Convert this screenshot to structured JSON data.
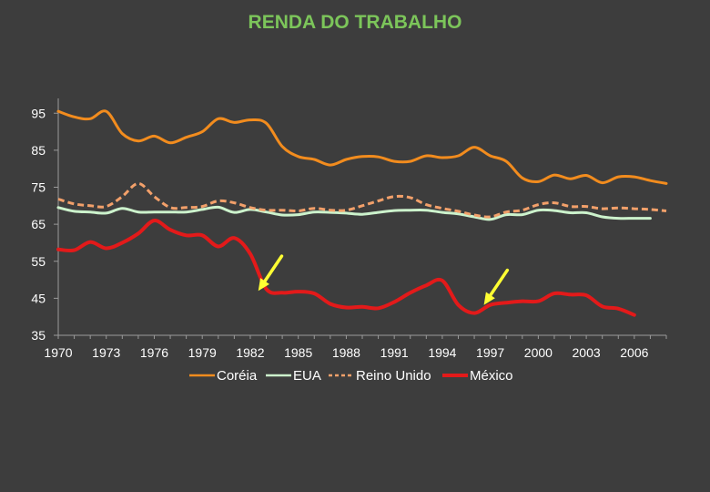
{
  "chart_data": {
    "type": "line",
    "title": "RENDA DO TRABALHO",
    "xlabel": "",
    "ylabel": "",
    "xlim": [
      1970,
      2008
    ],
    "ylim": [
      35,
      99
    ],
    "x_ticks": [
      "1970",
      "1973",
      "1976",
      "1979",
      "1982",
      "1985",
      "1988",
      "1991",
      "1994",
      "1997",
      "2000",
      "2003",
      "2006"
    ],
    "y_ticks": [
      "95",
      "85",
      "75",
      "65",
      "55",
      "45",
      "35"
    ],
    "grid": false,
    "legend_position": "bottom",
    "series": [
      {
        "name": "Coréia",
        "color": "#f28c1e",
        "style": "solid",
        "x": [
          1970,
          1971,
          1972,
          1973,
          1974,
          1975,
          1976,
          1977,
          1978,
          1979,
          1980,
          1981,
          1982,
          1983,
          1984,
          1985,
          1986,
          1987,
          1988,
          1989,
          1990,
          1991,
          1992,
          1993,
          1994,
          1995,
          1996,
          1997,
          1998,
          1999,
          2000,
          2001,
          2002,
          2003,
          2004,
          2005,
          2006,
          2007,
          2008
        ],
        "values": [
          95.5,
          94,
          93.5,
          95.5,
          89.5,
          87.5,
          88.8,
          87,
          88.5,
          90,
          93.5,
          92.5,
          93.2,
          92.3,
          86,
          83.3,
          82.5,
          81,
          82.5,
          83.3,
          83.2,
          82,
          82,
          83.5,
          83,
          83.5,
          85.8,
          83.5,
          82,
          77.5,
          76.5,
          78.3,
          77.3,
          78.2,
          76.2,
          77.8,
          77.8,
          76.8,
          76
        ]
      },
      {
        "name": "EUA",
        "color": "#ccf2cc",
        "style": "solid",
        "x": [
          1970,
          1971,
          1972,
          1973,
          1974,
          1975,
          1976,
          1977,
          1978,
          1979,
          1980,
          1981,
          1982,
          1983,
          1984,
          1985,
          1986,
          1987,
          1988,
          1989,
          1990,
          1991,
          1992,
          1993,
          1994,
          1995,
          1996,
          1997,
          1998,
          1999,
          2000,
          2001,
          2002,
          2003,
          2004,
          2005,
          2006,
          2007
        ],
        "values": [
          69.5,
          68.5,
          68.3,
          68,
          69.3,
          68.3,
          68.3,
          68.3,
          68.3,
          69,
          69.6,
          68.2,
          69,
          68.3,
          67.5,
          67.6,
          68.3,
          68.2,
          68,
          67.7,
          68.2,
          68.7,
          68.8,
          68.8,
          68.2,
          67.8,
          67,
          66.3,
          67.6,
          67.6,
          68.8,
          68.7,
          68.1,
          68.1,
          67,
          66.6,
          66.6,
          66.6
        ]
      },
      {
        "name": "Reino Unido",
        "color": "#f2a06a",
        "style": "dashed",
        "x": [
          1970,
          1971,
          1972,
          1973,
          1974,
          1975,
          1976,
          1977,
          1978,
          1979,
          1980,
          1981,
          1982,
          1983,
          1984,
          1985,
          1986,
          1987,
          1988,
          1989,
          1990,
          1991,
          1992,
          1993,
          1994,
          1995,
          1996,
          1997,
          1998,
          1999,
          2000,
          2001,
          2002,
          2003,
          2004,
          2005,
          2006,
          2007,
          2008
        ],
        "values": [
          71.8,
          70.5,
          70,
          69.8,
          72.5,
          76,
          72.5,
          69.5,
          69.5,
          69.8,
          71.3,
          70.8,
          69.5,
          68.8,
          68.8,
          68.6,
          69.3,
          68.8,
          68.8,
          70,
          71.3,
          72.5,
          72.2,
          70.3,
          69.3,
          68.5,
          67.5,
          67,
          68.3,
          68.8,
          70.3,
          70.8,
          69.8,
          69.8,
          69.2,
          69.4,
          69.2,
          69,
          68.6
        ]
      },
      {
        "name": "México",
        "color": "#e31a1a",
        "style": "solid",
        "x": [
          1970,
          1971,
          1972,
          1973,
          1974,
          1975,
          1976,
          1977,
          1978,
          1979,
          1980,
          1981,
          1982,
          1983,
          1984,
          1985,
          1986,
          1987,
          1988,
          1989,
          1990,
          1991,
          1992,
          1993,
          1994,
          1995,
          1996,
          1997,
          1998,
          1999,
          2000,
          2001,
          2002,
          2003,
          2004,
          2005,
          2006
        ],
        "values": [
          58.2,
          58,
          60.2,
          58.5,
          60,
          62.5,
          66,
          63.5,
          62,
          62,
          59,
          61.3,
          57,
          47.5,
          46.5,
          46.8,
          46.3,
          43.5,
          42.5,
          42.7,
          42.3,
          44,
          46.5,
          48.5,
          49.8,
          43.2,
          41,
          43.2,
          43.8,
          44.2,
          44.2,
          46.3,
          46,
          45.8,
          42.8,
          42.2,
          40.5
        ]
      }
    ],
    "annotations": [
      {
        "type": "arrow",
        "color": "#ffff33",
        "points_to": {
          "x": 1982.5,
          "y": 47
        }
      },
      {
        "type": "arrow",
        "color": "#ffff33",
        "points_to": {
          "x": 1996.6,
          "y": 43.2
        }
      }
    ]
  }
}
